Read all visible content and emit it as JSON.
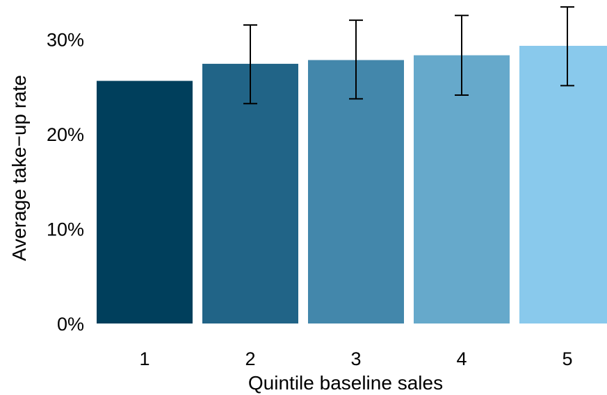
{
  "chart_data": {
    "type": "bar",
    "title": "",
    "xlabel": "Quintile baseline sales",
    "ylabel": "Average take−up rate",
    "categories": [
      "1",
      "2",
      "3",
      "4",
      "5"
    ],
    "values": [
      25.6,
      27.4,
      27.8,
      28.3,
      29.3
    ],
    "error_bars": [
      null,
      {
        "low": 23.2,
        "high": 31.5
      },
      {
        "low": 23.7,
        "high": 32.0
      },
      {
        "low": 24.1,
        "high": 32.5
      },
      {
        "low": 25.1,
        "high": 33.4
      }
    ],
    "ylim": [
      0,
      33.4
    ],
    "y_ticks": [
      0,
      10,
      20,
      30
    ],
    "y_tick_labels": [
      "0%",
      "10%",
      "20%",
      "30%"
    ],
    "colors": [
      "#003f5c",
      "#216487",
      "#4387ab",
      "#66a9cb",
      "#89c9ec"
    ],
    "grid": false,
    "legend": "none"
  }
}
